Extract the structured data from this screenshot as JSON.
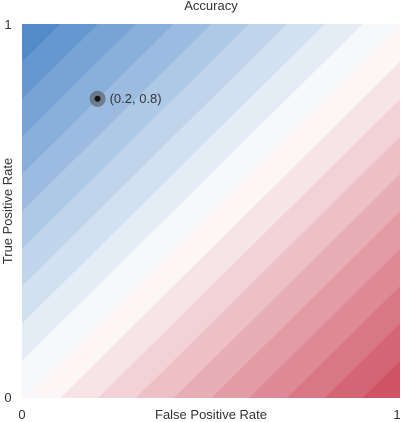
{
  "chart_data": {
    "type": "heatmap",
    "title": "Accuracy",
    "xlabel": "False Positive Rate",
    "ylabel": "True Positive Rate",
    "xlim": [
      0,
      1
    ],
    "ylim": [
      0,
      1
    ],
    "x_ticks": [
      "0",
      "1"
    ],
    "y_ticks": [
      "0",
      "1"
    ],
    "surface": "accuracy = (TPR + 1 - FPR) / 2",
    "contour_levels": 20,
    "colors": {
      "low": "#4a86c6",
      "mid": "#ffffff",
      "high": "#cc4a5c"
    },
    "point": {
      "x": 0.2,
      "y": 0.8,
      "label": "(0.2, 0.8)"
    }
  }
}
